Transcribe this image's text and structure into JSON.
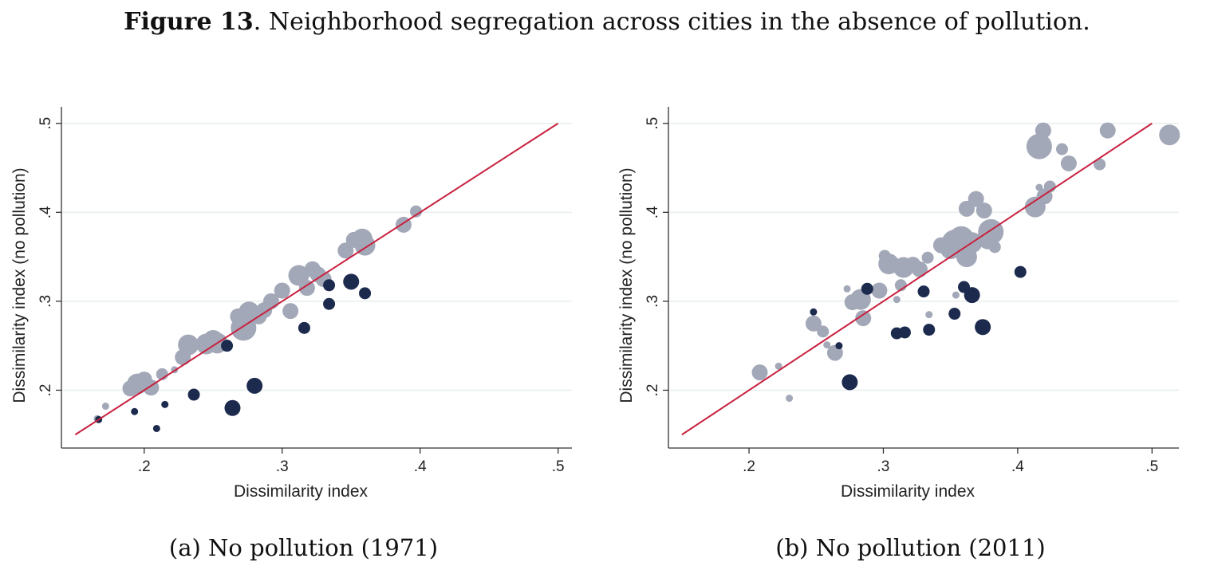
{
  "figure": {
    "label": "Figure 13",
    "title": ". Neighborhood segregation across cities in the absence of pollution."
  },
  "colors": {
    "light_points": "#a3a8b8",
    "dark_points": "#1c2a4e",
    "line": "#c8213f",
    "grid": "#e8eeee"
  },
  "chart_data": [
    {
      "type": "scatter",
      "caption": "(a) No pollution (1971)",
      "xlabel": "Dissimilarity index",
      "ylabel": "Dissimilarity index (no pollution)",
      "xlim": [
        0.14,
        0.51
      ],
      "ylim": [
        0.135,
        0.515
      ],
      "xticks": [
        0.2,
        0.3,
        0.4,
        0.5
      ],
      "yticks": [
        0.2,
        0.3,
        0.4,
        0.5
      ],
      "xtick_labels": [
        ".2",
        ".3",
        ".4",
        ".5"
      ],
      "ytick_labels": [
        ".2",
        ".3",
        ".4",
        ".5"
      ],
      "grid": true,
      "line": {
        "from": [
          0.15,
          0.15
        ],
        "to": [
          0.5,
          0.5
        ]
      },
      "series": [
        {
          "style": "light",
          "points": [
            [
              0.166,
              0.168,
              1
            ],
            [
              0.172,
              0.182,
              1
            ],
            [
              0.19,
              0.202,
              3
            ],
            [
              0.195,
              0.207,
              4
            ],
            [
              0.2,
              0.212,
              3
            ],
            [
              0.205,
              0.203,
              3
            ],
            [
              0.213,
              0.218,
              2
            ],
            [
              0.222,
              0.223,
              1
            ],
            [
              0.228,
              0.237,
              3
            ],
            [
              0.232,
              0.251,
              4
            ],
            [
              0.245,
              0.252,
              4
            ],
            [
              0.25,
              0.256,
              4
            ],
            [
              0.253,
              0.253,
              4
            ],
            [
              0.268,
              0.283,
              3
            ],
            [
              0.272,
              0.27,
              5
            ],
            [
              0.276,
              0.288,
              4
            ],
            [
              0.283,
              0.283,
              3
            ],
            [
              0.287,
              0.29,
              3
            ],
            [
              0.292,
              0.3,
              3
            ],
            [
              0.3,
              0.312,
              3
            ],
            [
              0.306,
              0.289,
              3
            ],
            [
              0.312,
              0.329,
              4
            ],
            [
              0.318,
              0.315,
              3
            ],
            [
              0.322,
              0.336,
              3
            ],
            [
              0.326,
              0.33,
              3
            ],
            [
              0.33,
              0.325,
              3
            ],
            [
              0.346,
              0.357,
              3
            ],
            [
              0.352,
              0.369,
              3
            ],
            [
              0.358,
              0.37,
              4
            ],
            [
              0.36,
              0.363,
              4
            ],
            [
              0.388,
              0.386,
              3
            ],
            [
              0.397,
              0.401,
              2
            ]
          ]
        },
        {
          "style": "dark",
          "points": [
            [
              0.167,
              0.167,
              1
            ],
            [
              0.193,
              0.176,
              1
            ],
            [
              0.209,
              0.157,
              1
            ],
            [
              0.215,
              0.184,
              1
            ],
            [
              0.236,
              0.195,
              2
            ],
            [
              0.26,
              0.25,
              2
            ],
            [
              0.264,
              0.18,
              3
            ],
            [
              0.28,
              0.205,
              3
            ],
            [
              0.316,
              0.27,
              2
            ],
            [
              0.334,
              0.318,
              2
            ],
            [
              0.334,
              0.297,
              2
            ],
            [
              0.35,
              0.322,
              3
            ],
            [
              0.36,
              0.309,
              2
            ]
          ]
        }
      ]
    },
    {
      "type": "scatter",
      "caption": "(b) No pollution (2011)",
      "xlabel": "Dissimilarity index",
      "ylabel": "Dissimilarity index (no pollution)",
      "xlim": [
        0.14,
        0.52
      ],
      "ylim": [
        0.135,
        0.515
      ],
      "xticks": [
        0.2,
        0.3,
        0.4,
        0.5
      ],
      "yticks": [
        0.2,
        0.3,
        0.4,
        0.5
      ],
      "xtick_labels": [
        ".2",
        ".3",
        ".4",
        ".5"
      ],
      "ytick_labels": [
        ".2",
        ".3",
        ".4",
        ".5"
      ],
      "grid": true,
      "line": {
        "from": [
          0.15,
          0.15
        ],
        "to": [
          0.5,
          0.5
        ]
      },
      "series": [
        {
          "style": "light",
          "points": [
            [
              0.208,
              0.22,
              3
            ],
            [
              0.222,
              0.227,
              1
            ],
            [
              0.23,
              0.191,
              1
            ],
            [
              0.248,
              0.275,
              3
            ],
            [
              0.255,
              0.266,
              2
            ],
            [
              0.258,
              0.251,
              1
            ],
            [
              0.264,
              0.242,
              3
            ],
            [
              0.273,
              0.314,
              1
            ],
            [
              0.277,
              0.299,
              3
            ],
            [
              0.283,
              0.302,
              4
            ],
            [
              0.285,
              0.281,
              3
            ],
            [
              0.297,
              0.312,
              3
            ],
            [
              0.301,
              0.351,
              2
            ],
            [
              0.304,
              0.342,
              4
            ],
            [
              0.31,
              0.302,
              1
            ],
            [
              0.313,
              0.318,
              2
            ],
            [
              0.315,
              0.338,
              4
            ],
            [
              0.322,
              0.341,
              3
            ],
            [
              0.327,
              0.336,
              3
            ],
            [
              0.333,
              0.349,
              2
            ],
            [
              0.334,
              0.285,
              1
            ],
            [
              0.343,
              0.363,
              3
            ],
            [
              0.35,
              0.359,
              4
            ],
            [
              0.353,
              0.366,
              5
            ],
            [
              0.354,
              0.307,
              1
            ],
            [
              0.358,
              0.37,
              5
            ],
            [
              0.362,
              0.35,
              4
            ],
            [
              0.362,
              0.404,
              3
            ],
            [
              0.366,
              0.366,
              4
            ],
            [
              0.369,
              0.415,
              3
            ],
            [
              0.375,
              0.402,
              3
            ],
            [
              0.378,
              0.37,
              4
            ],
            [
              0.38,
              0.378,
              5
            ],
            [
              0.383,
              0.361,
              2
            ],
            [
              0.413,
              0.406,
              4
            ],
            [
              0.416,
              0.428,
              1
            ],
            [
              0.416,
              0.474,
              5
            ],
            [
              0.419,
              0.492,
              3
            ],
            [
              0.42,
              0.418,
              3
            ],
            [
              0.424,
              0.429,
              2
            ],
            [
              0.433,
              0.471,
              2
            ],
            [
              0.438,
              0.455,
              3
            ],
            [
              0.461,
              0.454,
              2
            ],
            [
              0.467,
              0.492,
              3
            ],
            [
              0.513,
              0.487,
              4
            ]
          ]
        },
        {
          "style": "dark",
          "points": [
            [
              0.248,
              0.288,
              1
            ],
            [
              0.267,
              0.25,
              1
            ],
            [
              0.275,
              0.209,
              3
            ],
            [
              0.288,
              0.314,
              2
            ],
            [
              0.31,
              0.264,
              2
            ],
            [
              0.316,
              0.265,
              2
            ],
            [
              0.33,
              0.311,
              2
            ],
            [
              0.334,
              0.268,
              2
            ],
            [
              0.353,
              0.286,
              2
            ],
            [
              0.36,
              0.316,
              2
            ],
            [
              0.366,
              0.307,
              3
            ],
            [
              0.374,
              0.271,
              3
            ],
            [
              0.402,
              0.333,
              2
            ]
          ]
        }
      ]
    }
  ]
}
